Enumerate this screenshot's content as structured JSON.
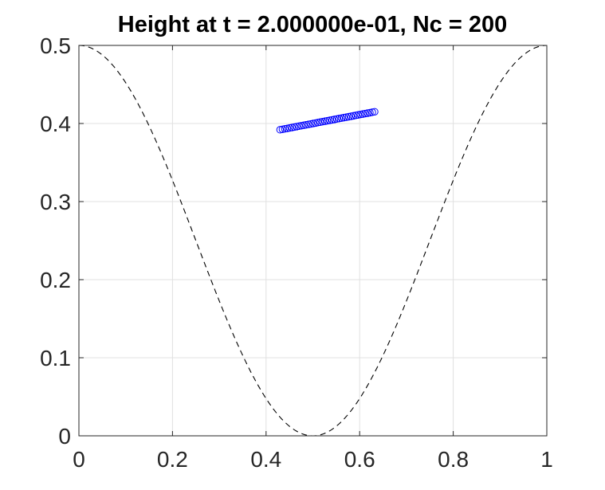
{
  "chart_data": {
    "type": "scatter",
    "title": "Height at t = 2.000000e-01, Nc = 200",
    "xlabel": "",
    "ylabel": "",
    "xlim": [
      0,
      1
    ],
    "ylim": [
      0,
      0.5
    ],
    "xticks": [
      0,
      0.2,
      0.4,
      0.6,
      0.8,
      1
    ],
    "xtick_labels": [
      "0",
      "0.2",
      "0.4",
      "0.6",
      "0.8",
      "1"
    ],
    "yticks": [
      0,
      0.1,
      0.2,
      0.3,
      0.4,
      0.5
    ],
    "ytick_labels": [
      "0",
      "0.1",
      "0.2",
      "0.3",
      "0.4",
      "0.5"
    ],
    "grid": true,
    "series": [
      {
        "style": "dashed-line",
        "color": "#000000",
        "function": "0.25*(1+cos(2*pi*x))",
        "x_range": [
          0,
          1
        ]
      },
      {
        "style": "circle-markers",
        "color": "#0000ff",
        "x_range": [
          0.43,
          0.632
        ],
        "y_range": [
          0.392,
          0.415
        ],
        "count": 41
      }
    ]
  }
}
